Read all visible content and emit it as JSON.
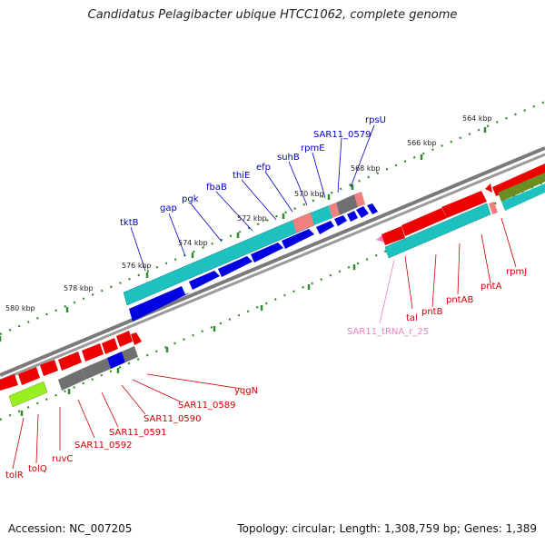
{
  "title": "Candidatus Pelagibacter ubique HTCC1062, complete genome",
  "footer": {
    "accession": "Accession: NC_007205",
    "stats": "Topology: circular; Length: 1,308,759 bp; Genes: 1,389"
  },
  "colors": {
    "backbone": "#808080",
    "ruler_dots": "#2e8b2e",
    "forward_label": "#0000c0",
    "reverse_label": "#cc0000",
    "rna_label": "#f080c0",
    "cds": "#0000e0",
    "cds_reverse": "#ee0000",
    "operon": "#1fc0c0",
    "rrna": "#f08080",
    "hypothetical": "#707070",
    "lime_feature": "#99ee22",
    "olive_feature": "#6b8e23"
  },
  "ticks": [
    {
      "label": "564 kbp"
    },
    {
      "label": "566 kbp"
    },
    {
      "label": "568 kbp"
    },
    {
      "label": "570 kbp"
    },
    {
      "label": "572 kbp"
    },
    {
      "label": "574 kbp"
    },
    {
      "label": "576 kbp"
    },
    {
      "label": "578 kbp"
    },
    {
      "label": "580 kbp"
    }
  ],
  "forward_labels": [
    "tktB",
    "gap",
    "pgk",
    "fbaB",
    "thiE",
    "efp",
    "suhB",
    "rpmE",
    "SAR11_0579",
    "rpsU"
  ],
  "reverse_labels_right": [
    "tal",
    "pntB",
    "pntAB",
    "pntA",
    "rpmJ"
  ],
  "rna_labels": [
    "SAR11_tRNA_r_25"
  ],
  "reverse_labels_left": [
    "yqgN",
    "SAR11_0589",
    "SAR11_0590",
    "SAR11_0591",
    "SAR11_0592",
    "ruvC",
    "tolQ",
    "tolR"
  ]
}
